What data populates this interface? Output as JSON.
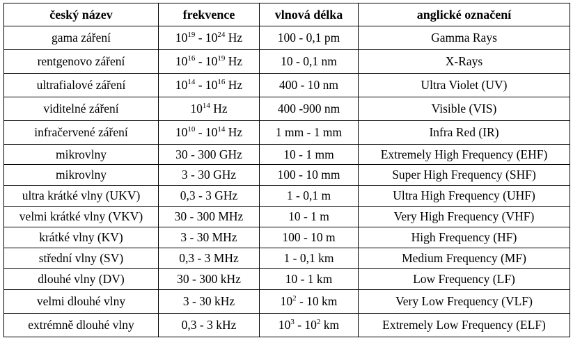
{
  "headers": {
    "czech_name": "český název",
    "frequency": "frekvence",
    "wavelength": "vlnová délka",
    "english_name": "anglické označení"
  },
  "rows": [
    {
      "czech": "gama záření",
      "freq_lo_base": "10",
      "freq_lo_exp": "19",
      "freq_sep": " - ",
      "freq_hi_base": "10",
      "freq_hi_exp": "24",
      "freq_unit": " Hz",
      "wavelength": "100 - 0,1 pm",
      "english": "Gamma Rays"
    },
    {
      "czech": "rentgenovo záření",
      "freq_lo_base": "10",
      "freq_lo_exp": "16",
      "freq_sep": " - ",
      "freq_hi_base": "10",
      "freq_hi_exp": "19",
      "freq_unit": " Hz",
      "wavelength": "10 - 0,1 nm",
      "english": "X-Rays"
    },
    {
      "czech": "ultrafialové záření",
      "freq_lo_base": "10",
      "freq_lo_exp": "14",
      "freq_sep": " - ",
      "freq_hi_base": "10",
      "freq_hi_exp": "16",
      "freq_unit": " Hz",
      "wavelength": "400  - 10 nm",
      "english": "Ultra Violet (UV)"
    },
    {
      "czech": "viditelné záření",
      "freq_base": "10",
      "freq_exp": "14",
      "freq_unit": " Hz",
      "wavelength": "400 -900 nm",
      "english": "Visible (VIS)"
    },
    {
      "czech": "infračervené záření",
      "freq_lo_base": "10",
      "freq_lo_exp": "10",
      "freq_sep": " - ",
      "freq_hi_base": "10",
      "freq_hi_exp": "14",
      "freq_unit": " Hz",
      "wavelength": "1 mm - 1 mm",
      "english": "Infra Red (IR)"
    },
    {
      "czech": "mikrovlny",
      "frequency": "30 - 300 GHz",
      "wavelength": "10 - 1 mm",
      "english": "Extremely High Frequency (EHF)"
    },
    {
      "czech": "mikrovlny",
      "frequency": "3 - 30 GHz",
      "wavelength": "100 - 10 mm",
      "english": "Super High Frequency (SHF)"
    },
    {
      "czech": "ultra krátké vlny (UKV)",
      "frequency": "0,3 - 3 GHz",
      "wavelength": "1 - 0,1 m",
      "english": "Ultra High Frequency (UHF)"
    },
    {
      "czech": "velmi krátké vlny (VKV)",
      "frequency": "30 - 300 MHz",
      "wavelength": "10 - 1 m",
      "english": "Very High Frequency (VHF)"
    },
    {
      "czech": "krátké vlny (KV)",
      "frequency": "3 - 30 MHz",
      "wavelength": "100 - 10 m",
      "english": "High Frequency (HF)"
    },
    {
      "czech": "střední vlny (SV)",
      "frequency": "0,3 - 3 MHz",
      "wavelength": "1 - 0,1 km",
      "english": "Medium Frequency (MF)"
    },
    {
      "czech": "dlouhé vlny (DV)",
      "frequency": "30 - 300 kHz",
      "wavelength": "10 - 1 km",
      "english": "Low Frequency (LF)"
    },
    {
      "czech": "velmi dlouhé vlny",
      "frequency": "3 - 30 kHz",
      "wl_base": "10",
      "wl_exp": "2",
      "wl_rest": " - 10 km",
      "english": "Very Low Frequency (VLF)"
    },
    {
      "czech": "extrémně dlouhé vlny",
      "frequency": "0,3 - 3 kHz",
      "wl_lo_base": "10",
      "wl_lo_exp": "3",
      "wl_sep": " - ",
      "wl_hi_base": "10",
      "wl_hi_exp": "2",
      "wl_unit": " km",
      "english": "Extremely Low Frequency (ELF)"
    }
  ]
}
